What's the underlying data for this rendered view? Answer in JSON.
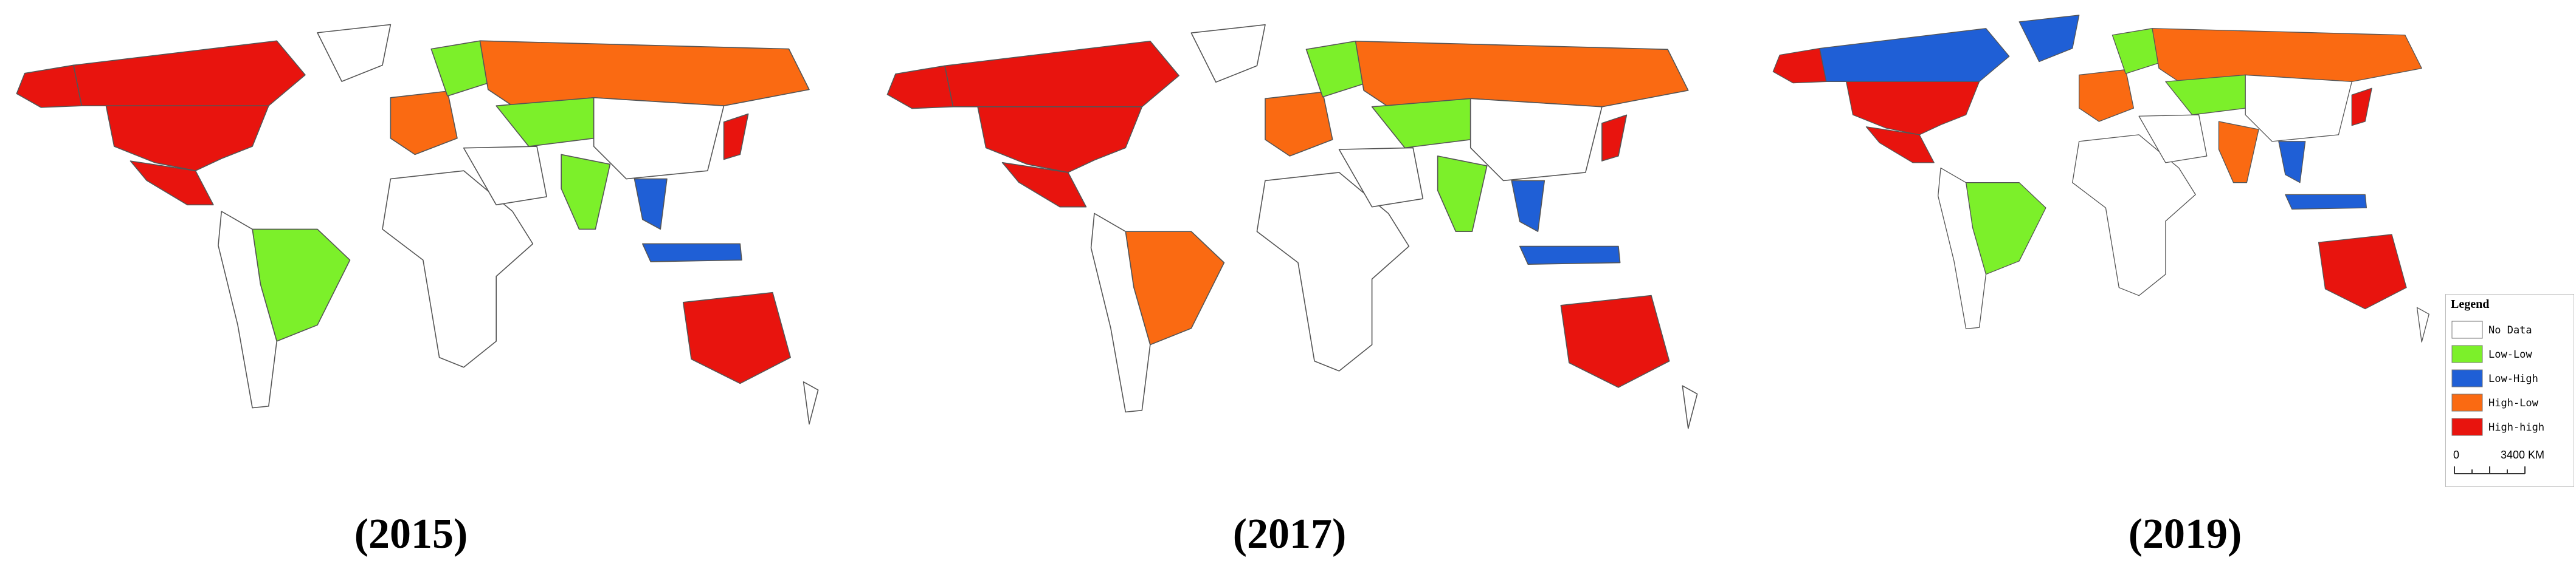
{
  "maps": [
    {
      "caption": "(2015)"
    },
    {
      "caption": "(2017)"
    },
    {
      "caption": "(2019)"
    }
  ],
  "legend": {
    "title": "Legend",
    "items": [
      {
        "label": "No Data",
        "color": "#ffffff"
      },
      {
        "label": "Low-Low",
        "color": "#7cf02a"
      },
      {
        "label": "Low-High",
        "color": "#1f5fd6"
      },
      {
        "label": "High-Low",
        "color": "#fa6a12"
      },
      {
        "label": "High-high",
        "color": "#e8140e"
      }
    ]
  },
  "scale_bar": {
    "start": "0",
    "end": "3400 KM"
  }
}
